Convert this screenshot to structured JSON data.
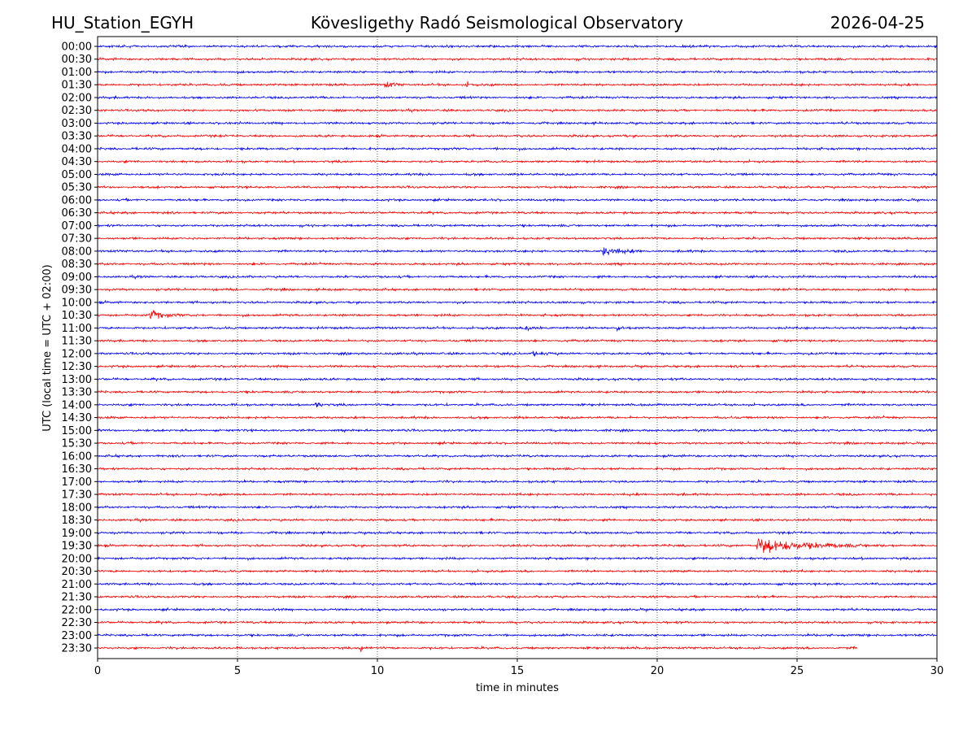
{
  "header": {
    "station": "HU_Station_EGYH",
    "observatory": "Kövesligethy Radó Seismological Observatory",
    "date": "2026-04-25"
  },
  "chart_data": {
    "type": "line",
    "title": "Kövesligethy Radó Seismological Observatory",
    "xlabel": "time in minutes",
    "ylabel": "UTC (local time = UTC + 02:00)",
    "xlim": [
      0,
      30
    ],
    "xticks": [
      0,
      5,
      10,
      15,
      20,
      25,
      30
    ],
    "grid": "vertical dotted at x ticks",
    "row_labels": [
      "00:00",
      "00:30",
      "01:00",
      "01:30",
      "02:00",
      "02:30",
      "03:00",
      "03:30",
      "04:00",
      "04:30",
      "05:00",
      "05:30",
      "06:00",
      "06:30",
      "07:00",
      "07:30",
      "08:00",
      "08:30",
      "09:00",
      "09:30",
      "10:00",
      "10:30",
      "11:00",
      "11:30",
      "12:00",
      "12:30",
      "13:00",
      "13:30",
      "14:00",
      "14:30",
      "15:00",
      "15:30",
      "16:00",
      "16:30",
      "17:00",
      "17:30",
      "18:00",
      "18:30",
      "19:00",
      "19:30",
      "20:00",
      "20:30",
      "21:00",
      "21:30",
      "22:00",
      "22:30",
      "23:00",
      "23:30"
    ],
    "series_colors": [
      "#0000ff",
      "#ff0000"
    ],
    "last_row_end_minute": 27.15,
    "events": [
      {
        "row": "01:30",
        "minute": 10.3,
        "amplitude": 2.5,
        "duration": 0.8
      },
      {
        "row": "01:30",
        "minute": 13.2,
        "amplitude": 2.0,
        "duration": 0.4
      },
      {
        "row": "08:00",
        "minute": 18.1,
        "amplitude": 3.5,
        "duration": 1.5
      },
      {
        "row": "10:30",
        "minute": 1.9,
        "amplitude": 4.0,
        "duration": 1.2
      },
      {
        "row": "11:00",
        "minute": 15.3,
        "amplitude": 3.0,
        "duration": 1.0
      },
      {
        "row": "11:00",
        "minute": 18.6,
        "amplitude": 2.0,
        "duration": 0.6
      },
      {
        "row": "12:00",
        "minute": 15.6,
        "amplitude": 2.5,
        "duration": 0.6
      },
      {
        "row": "14:00",
        "minute": 7.8,
        "amplitude": 2.5,
        "duration": 0.5
      },
      {
        "row": "19:30",
        "minute": 23.6,
        "amplitude": 6.5,
        "duration": 4.5
      },
      {
        "row": "23:30",
        "minute": 9.4,
        "amplitude": 3.0,
        "duration": 0.4
      }
    ]
  }
}
